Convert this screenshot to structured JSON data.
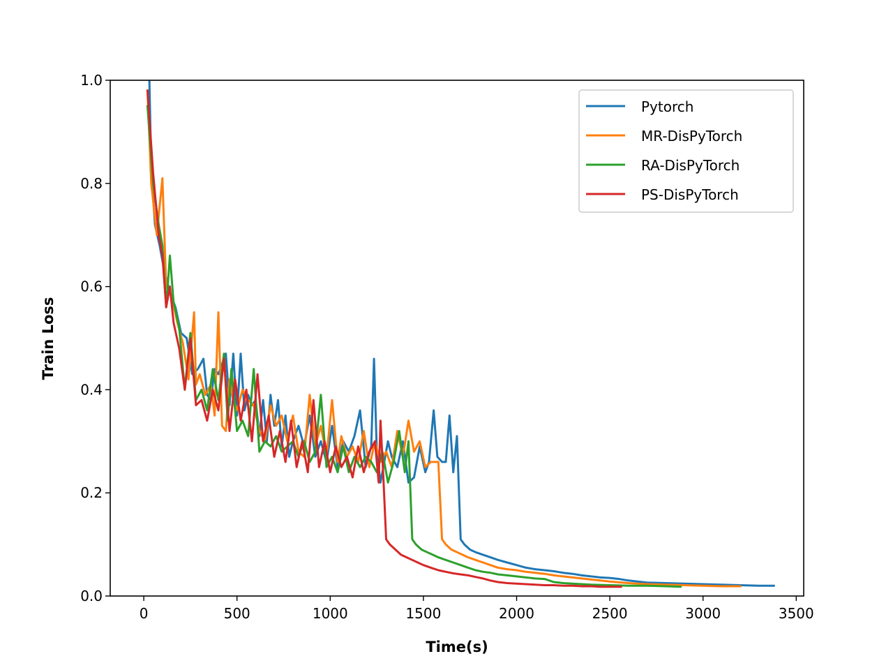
{
  "chart_data": {
    "type": "line",
    "title": "",
    "xlabel": "Time(s)",
    "ylabel": "Train Loss",
    "xlim": [
      -180,
      3540
    ],
    "ylim": [
      0.0,
      1.0
    ],
    "xticks": [
      0,
      500,
      1000,
      1500,
      2000,
      2500,
      3000,
      3500
    ],
    "yticks": [
      0.0,
      0.2,
      0.4,
      0.6,
      0.8,
      1.0
    ],
    "xtick_labels": [
      "0",
      "500",
      "1000",
      "1500",
      "2000",
      "2500",
      "3000",
      "3500"
    ],
    "ytick_labels": [
      "0.0",
      "0.2",
      "0.4",
      "0.6",
      "0.8",
      "1.0"
    ],
    "grid": false,
    "legend_position": "top-right",
    "series": [
      {
        "name": "Pytorch",
        "color": "#1f77b4",
        "x": [
          30,
          40,
          60,
          85,
          110,
          140,
          170,
          200,
          230,
          260,
          290,
          320,
          340,
          360,
          380,
          400,
          420,
          440,
          460,
          480,
          500,
          520,
          540,
          560,
          580,
          600,
          620,
          640,
          660,
          680,
          700,
          720,
          740,
          760,
          780,
          800,
          830,
          860,
          890,
          920,
          950,
          980,
          1010,
          1040,
          1070,
          1100,
          1130,
          1160,
          1190,
          1220,
          1235,
          1250,
          1270,
          1290,
          1310,
          1330,
          1360,
          1390,
          1420,
          1450,
          1480,
          1510,
          1530,
          1555,
          1575,
          1600,
          1620,
          1640,
          1660,
          1680,
          1700,
          1720,
          1750,
          1780,
          1820,
          1860,
          1900,
          1950,
          2000,
          2050,
          2100,
          2150,
          2200,
          2250,
          2300,
          2350,
          2400,
          2450,
          2500,
          2550,
          2600,
          2650,
          2700,
          2800,
          2900,
          3000,
          3100,
          3200,
          3300,
          3380
        ],
        "y": [
          1.0,
          0.83,
          0.72,
          0.68,
          0.63,
          0.59,
          0.56,
          0.51,
          0.5,
          0.43,
          0.44,
          0.46,
          0.39,
          0.38,
          0.44,
          0.43,
          0.45,
          0.47,
          0.37,
          0.47,
          0.35,
          0.47,
          0.36,
          0.39,
          0.37,
          0.38,
          0.31,
          0.38,
          0.3,
          0.39,
          0.33,
          0.38,
          0.29,
          0.35,
          0.27,
          0.3,
          0.33,
          0.29,
          0.35,
          0.27,
          0.3,
          0.26,
          0.33,
          0.25,
          0.3,
          0.28,
          0.31,
          0.36,
          0.25,
          0.29,
          0.46,
          0.28,
          0.22,
          0.26,
          0.3,
          0.27,
          0.25,
          0.3,
          0.22,
          0.23,
          0.29,
          0.24,
          0.26,
          0.36,
          0.27,
          0.26,
          0.26,
          0.35,
          0.24,
          0.31,
          0.11,
          0.1,
          0.09,
          0.085,
          0.08,
          0.075,
          0.07,
          0.065,
          0.06,
          0.055,
          0.052,
          0.05,
          0.048,
          0.045,
          0.043,
          0.04,
          0.038,
          0.036,
          0.035,
          0.033,
          0.03,
          0.028,
          0.026,
          0.025,
          0.024,
          0.023,
          0.022,
          0.021,
          0.02,
          0.02
        ]
      },
      {
        "name": "MR-DisPyTorch",
        "color": "#ff7f0e",
        "x": [
          20,
          40,
          70,
          100,
          120,
          150,
          180,
          210,
          240,
          270,
          280,
          300,
          330,
          360,
          380,
          400,
          420,
          440,
          460,
          480,
          500,
          530,
          560,
          590,
          620,
          650,
          680,
          710,
          740,
          770,
          800,
          830,
          860,
          890,
          920,
          950,
          980,
          1010,
          1040,
          1060,
          1090,
          1120,
          1150,
          1180,
          1210,
          1240,
          1270,
          1300,
          1330,
          1360,
          1390,
          1420,
          1450,
          1480,
          1510,
          1540,
          1560,
          1580,
          1600,
          1620,
          1650,
          1680,
          1710,
          1740,
          1780,
          1820,
          1860,
          1900,
          1950,
          2000,
          2050,
          2100,
          2150,
          2200,
          2250,
          2300,
          2350,
          2400,
          2450,
          2500,
          2600,
          2700,
          2800,
          2900,
          3000,
          3100,
          3200
        ],
        "y": [
          0.98,
          0.8,
          0.7,
          0.81,
          0.6,
          0.58,
          0.53,
          0.49,
          0.42,
          0.55,
          0.41,
          0.43,
          0.39,
          0.41,
          0.35,
          0.55,
          0.33,
          0.32,
          0.42,
          0.38,
          0.36,
          0.4,
          0.38,
          0.37,
          0.32,
          0.3,
          0.37,
          0.33,
          0.35,
          0.3,
          0.35,
          0.28,
          0.27,
          0.39,
          0.29,
          0.33,
          0.27,
          0.38,
          0.26,
          0.31,
          0.27,
          0.29,
          0.26,
          0.32,
          0.25,
          0.3,
          0.26,
          0.28,
          0.25,
          0.32,
          0.27,
          0.34,
          0.28,
          0.3,
          0.25,
          0.26,
          0.26,
          0.26,
          0.11,
          0.1,
          0.09,
          0.085,
          0.08,
          0.075,
          0.07,
          0.065,
          0.06,
          0.055,
          0.052,
          0.05,
          0.047,
          0.045,
          0.043,
          0.04,
          0.038,
          0.036,
          0.034,
          0.032,
          0.03,
          0.028,
          0.025,
          0.023,
          0.022,
          0.021,
          0.02,
          0.019,
          0.019
        ]
      },
      {
        "name": "RA-DisPyTorch",
        "color": "#2ca02c",
        "x": [
          20,
          50,
          80,
          100,
          120,
          140,
          160,
          190,
          220,
          250,
          280,
          310,
          340,
          370,
          400,
          430,
          450,
          470,
          500,
          530,
          560,
          590,
          620,
          650,
          680,
          710,
          740,
          770,
          800,
          830,
          860,
          890,
          920,
          950,
          980,
          1010,
          1040,
          1070,
          1100,
          1130,
          1160,
          1190,
          1220,
          1250,
          1280,
          1310,
          1340,
          1370,
          1400,
          1420,
          1440,
          1460,
          1490,
          1520,
          1550,
          1580,
          1620,
          1660,
          1700,
          1740,
          1780,
          1820,
          1860,
          1900,
          1950,
          2000,
          2050,
          2100,
          2150,
          2200,
          2250,
          2300,
          2350,
          2400,
          2500,
          2600,
          2700,
          2800,
          2880
        ],
        "y": [
          0.95,
          0.8,
          0.72,
          0.68,
          0.56,
          0.66,
          0.57,
          0.52,
          0.4,
          0.51,
          0.38,
          0.4,
          0.36,
          0.44,
          0.38,
          0.47,
          0.34,
          0.44,
          0.32,
          0.34,
          0.31,
          0.44,
          0.28,
          0.3,
          0.29,
          0.31,
          0.28,
          0.29,
          0.3,
          0.27,
          0.3,
          0.26,
          0.28,
          0.39,
          0.25,
          0.27,
          0.24,
          0.29,
          0.24,
          0.27,
          0.25,
          0.27,
          0.26,
          0.24,
          0.28,
          0.22,
          0.26,
          0.32,
          0.24,
          0.3,
          0.11,
          0.1,
          0.09,
          0.085,
          0.08,
          0.075,
          0.07,
          0.065,
          0.06,
          0.055,
          0.05,
          0.047,
          0.045,
          0.042,
          0.04,
          0.038,
          0.036,
          0.034,
          0.033,
          0.027,
          0.025,
          0.024,
          0.023,
          0.022,
          0.021,
          0.02,
          0.02,
          0.019,
          0.018
        ]
      },
      {
        "name": "PS-DisPyTorch",
        "color": "#d62728",
        "x": [
          20,
          50,
          80,
          100,
          120,
          140,
          160,
          190,
          220,
          250,
          280,
          310,
          340,
          370,
          400,
          430,
          460,
          490,
          520,
          550,
          580,
          610,
          640,
          670,
          700,
          730,
          760,
          790,
          820,
          850,
          880,
          910,
          940,
          970,
          1000,
          1030,
          1060,
          1090,
          1120,
          1150,
          1180,
          1210,
          1240,
          1260,
          1270,
          1285,
          1300,
          1320,
          1350,
          1380,
          1410,
          1440,
          1470,
          1500,
          1540,
          1580,
          1620,
          1660,
          1700,
          1740,
          1780,
          1820,
          1860,
          1900,
          1950,
          2000,
          2050,
          2100,
          2150,
          2200,
          2250,
          2300,
          2350,
          2400,
          2450,
          2500,
          2560
        ],
        "y": [
          0.98,
          0.82,
          0.7,
          0.66,
          0.56,
          0.6,
          0.53,
          0.48,
          0.4,
          0.5,
          0.37,
          0.38,
          0.34,
          0.4,
          0.36,
          0.46,
          0.32,
          0.42,
          0.34,
          0.4,
          0.3,
          0.43,
          0.3,
          0.35,
          0.27,
          0.32,
          0.26,
          0.34,
          0.25,
          0.3,
          0.24,
          0.38,
          0.25,
          0.3,
          0.24,
          0.29,
          0.25,
          0.27,
          0.23,
          0.29,
          0.24,
          0.28,
          0.3,
          0.22,
          0.34,
          0.23,
          0.11,
          0.1,
          0.09,
          0.08,
          0.075,
          0.07,
          0.065,
          0.06,
          0.055,
          0.05,
          0.047,
          0.044,
          0.042,
          0.04,
          0.037,
          0.034,
          0.03,
          0.027,
          0.025,
          0.024,
          0.023,
          0.022,
          0.021,
          0.021,
          0.02,
          0.02,
          0.019,
          0.019,
          0.018,
          0.018,
          0.018
        ]
      }
    ]
  }
}
